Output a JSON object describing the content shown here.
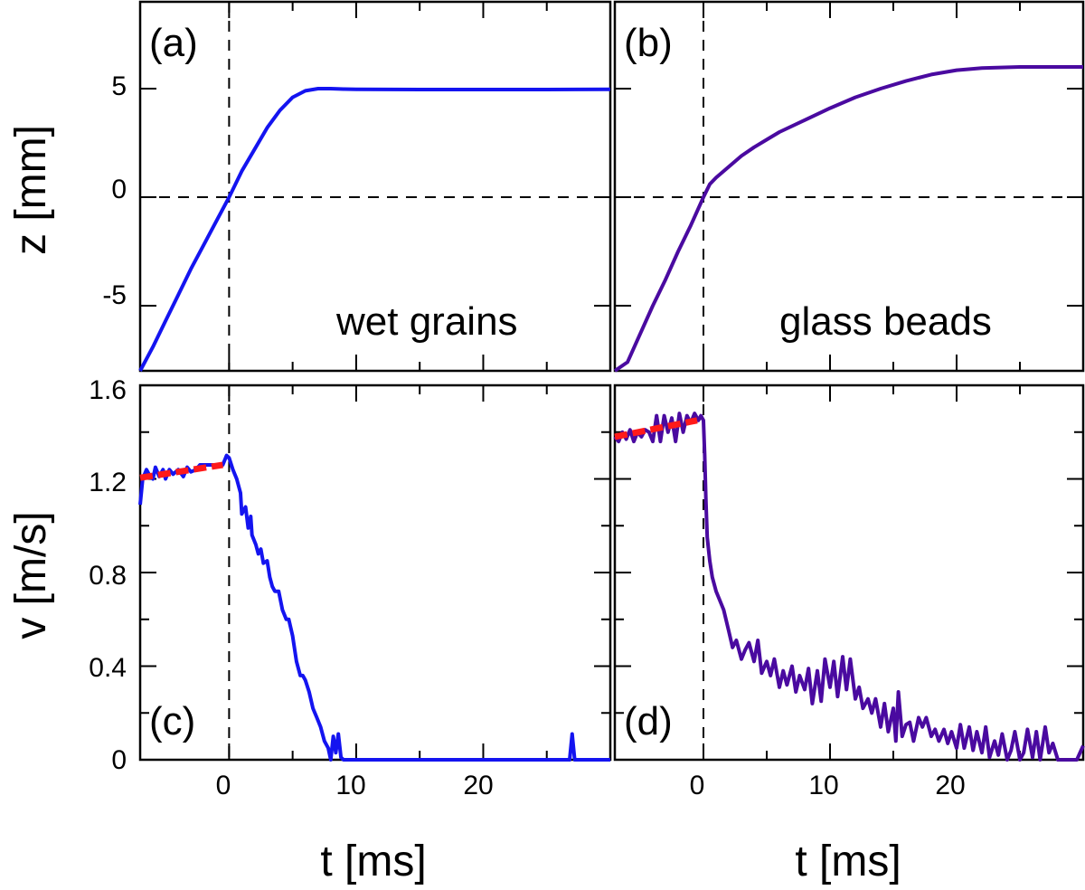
{
  "colors": {
    "wet": "#1414f0",
    "glass": "#4a0aa0",
    "fit": "#ff1a1a",
    "axis": "#000000"
  },
  "axes": {
    "x_title": "t [ms]",
    "z_title": "z [mm]",
    "v_title": "v [m/s]",
    "x_ticks": [
      "0",
      "10",
      "20"
    ],
    "z_ticks": [
      "5",
      "0",
      "-5"
    ],
    "v_ticks": [
      "1.6",
      "1.2",
      "0.8",
      "0.4",
      "0"
    ]
  },
  "panels": {
    "a": {
      "label": "(a)",
      "annotation": "wet grains"
    },
    "b": {
      "label": "(b)",
      "annotation": "glass beads"
    },
    "c": {
      "label": "(c)"
    },
    "d": {
      "label": "(d)"
    }
  },
  "chart_data": [
    {
      "type": "line",
      "panel": "a",
      "xlabel": "",
      "ylabel": "z [mm]",
      "xlim": [
        -7,
        30
      ],
      "ylim": [
        -8,
        9
      ],
      "series": [
        {
          "color": "#1414f0",
          "x": [
            -7,
            -6,
            -5,
            -4,
            -3,
            -2,
            -1,
            0,
            1,
            2,
            3,
            4,
            5,
            6,
            7,
            7.6,
            8,
            9,
            10,
            15,
            20,
            25,
            30
          ],
          "y": [
            -8.1,
            -6.9,
            -5.7,
            -4.5,
            -3.3,
            -2.2,
            -1.1,
            0,
            1.2,
            2.2,
            3.2,
            4.0,
            4.6,
            4.9,
            5.0,
            5.0,
            5.0,
            4.98,
            4.97,
            4.96,
            4.96,
            4.96,
            4.97
          ]
        }
      ]
    },
    {
      "type": "line",
      "panel": "b",
      "xlabel": "",
      "ylabel": "",
      "xlim": [
        -7,
        30
      ],
      "ylim": [
        -8,
        9
      ],
      "series": [
        {
          "color": "#4a0aa0",
          "x": [
            -7,
            -6,
            -5,
            -4,
            -3,
            -2,
            -1,
            0,
            0.5,
            1,
            2,
            3,
            4,
            5,
            6,
            8,
            10,
            12,
            14,
            16,
            18,
            20,
            22,
            25,
            28,
            30
          ],
          "y": [
            -9.0,
            -7.6,
            -6.3,
            -5.0,
            -3.8,
            -2.5,
            -1.3,
            0,
            0.6,
            0.9,
            1.4,
            1.9,
            2.3,
            2.65,
            3.0,
            3.55,
            4.1,
            4.6,
            5.0,
            5.35,
            5.65,
            5.85,
            5.95,
            6.0,
            6.0,
            6.0
          ]
        }
      ]
    },
    {
      "type": "line",
      "panel": "c",
      "xlabel": "t [ms]",
      "ylabel": "v [m/s]",
      "xlim": [
        -7,
        30
      ],
      "ylim": [
        0,
        1.6
      ],
      "series": [
        {
          "color": "#1414f0",
          "x": [
            -7,
            -6.8,
            -6.5,
            -6.2,
            -6,
            -5.8,
            -5.5,
            -5.2,
            -5,
            -4.7,
            -4.4,
            -4,
            -3.6,
            -3.3,
            -3,
            -2.6,
            -2.3,
            -2,
            -1.6,
            -1.2,
            -0.8,
            -0.5,
            -0.2,
            0,
            0.3,
            0.6,
            0.9,
            1.0,
            1.3,
            1.5,
            1.7,
            1.8,
            2.1,
            2.3,
            2.5,
            2.7,
            3.0,
            3.2,
            3.4,
            3.6,
            3.9,
            4.2,
            4.5,
            4.7,
            5.0,
            5.3,
            5.6,
            5.8,
            6.0,
            6.3,
            6.6,
            6.9,
            7.2,
            7.5,
            7.8,
            8.0,
            8.2,
            8.4,
            8.6,
            8.8,
            9.0,
            9.2,
            9.5,
            10,
            15,
            20,
            25,
            26.8,
            27.0,
            27.2,
            27.5,
            30
          ],
          "y": [
            1.09,
            1.2,
            1.24,
            1.21,
            1.2,
            1.25,
            1.21,
            1.24,
            1.2,
            1.24,
            1.22,
            1.24,
            1.21,
            1.25,
            1.23,
            1.24,
            1.26,
            1.26,
            1.26,
            1.26,
            1.26,
            1.26,
            1.3,
            1.29,
            1.24,
            1.2,
            1.14,
            1.05,
            1.08,
            0.99,
            1.04,
            0.96,
            0.92,
            0.88,
            0.9,
            0.84,
            0.85,
            0.78,
            0.74,
            0.72,
            0.72,
            0.64,
            0.6,
            0.6,
            0.53,
            0.42,
            0.36,
            0.36,
            0.34,
            0.29,
            0.22,
            0.18,
            0.14,
            0.08,
            0.05,
            0.0,
            0.1,
            0.03,
            0.11,
            0.01,
            0.0,
            0.0,
            0.0,
            0.0,
            0.0,
            0.0,
            0.0,
            0.0,
            0.11,
            0.0,
            0.0,
            0.0
          ]
        },
        {
          "color": "#ff1a1a",
          "dashed": true,
          "x": [
            -7,
            -0.5
          ],
          "y": [
            1.205,
            1.26
          ]
        }
      ]
    },
    {
      "type": "line",
      "panel": "d",
      "xlabel": "t [ms]",
      "ylabel": "",
      "xlim": [
        -7,
        30
      ],
      "ylim": [
        0,
        1.6
      ],
      "series": [
        {
          "color": "#4a0aa0",
          "x": [
            -7,
            -6.7,
            -6.4,
            -6.1,
            -5.8,
            -5.5,
            -5.2,
            -4.9,
            -4.6,
            -4.3,
            -4.0,
            -3.7,
            -3.4,
            -3.1,
            -2.8,
            -2.5,
            -2.2,
            -1.9,
            -1.6,
            -1.3,
            -1.0,
            -0.7,
            -0.4,
            -0.2,
            0,
            0.1,
            0.2,
            0.3,
            0.5,
            0.7,
            1.0,
            1.3,
            1.6,
            2.0,
            2.3,
            2.6,
            3.0,
            3.3,
            3.6,
            4.0,
            4.3,
            4.6,
            5.0,
            5.3,
            5.6,
            6.0,
            6.3,
            6.6,
            7.0,
            7.3,
            7.6,
            8.0,
            8.3,
            8.6,
            9.0,
            9.3,
            9.6,
            10.0,
            10.3,
            10.6,
            11.0,
            11.3,
            11.6,
            12.0,
            12.3,
            12.6,
            13.0,
            13.3,
            13.6,
            14.0,
            14.3,
            14.6,
            15.0,
            15.2,
            15.4,
            15.7,
            16.0,
            16.3,
            16.6,
            17.0,
            17.3,
            17.6,
            18.0,
            18.3,
            18.6,
            19.0,
            19.3,
            19.6,
            20.0,
            20.3,
            20.6,
            21.0,
            21.3,
            21.6,
            22.0,
            22.3,
            22.6,
            23.0,
            23.3,
            23.6,
            24.0,
            24.3,
            24.6,
            25.0,
            25.3,
            25.6,
            26.0,
            26.3,
            26.6,
            27.0,
            27.3,
            27.6,
            28.0,
            29.0,
            29.5,
            30.0
          ],
          "y": [
            1.38,
            1.36,
            1.4,
            1.37,
            1.41,
            1.36,
            1.4,
            1.38,
            1.41,
            1.4,
            1.36,
            1.47,
            1.36,
            1.47,
            1.4,
            1.46,
            1.36,
            1.48,
            1.4,
            1.47,
            1.44,
            1.48,
            1.45,
            1.47,
            1.45,
            1.3,
            1.1,
            0.95,
            0.85,
            0.78,
            0.72,
            0.68,
            0.64,
            0.55,
            0.48,
            0.51,
            0.43,
            0.47,
            0.5,
            0.42,
            0.51,
            0.37,
            0.42,
            0.36,
            0.43,
            0.31,
            0.38,
            0.32,
            0.4,
            0.29,
            0.36,
            0.3,
            0.39,
            0.24,
            0.38,
            0.25,
            0.43,
            0.31,
            0.42,
            0.27,
            0.44,
            0.3,
            0.43,
            0.26,
            0.31,
            0.22,
            0.26,
            0.2,
            0.26,
            0.14,
            0.24,
            0.12,
            0.22,
            0.08,
            0.29,
            0.1,
            0.15,
            0.16,
            0.08,
            0.18,
            0.14,
            0.18,
            0.1,
            0.13,
            0.08,
            0.13,
            0.07,
            0.12,
            0.05,
            0.15,
            0.05,
            0.14,
            0.04,
            0.12,
            0.03,
            0.14,
            0.01,
            0.08,
            0.02,
            0.11,
            0.0,
            0.04,
            0.12,
            0.0,
            0.03,
            0.13,
            0.01,
            0.12,
            0.0,
            0.14,
            0.03,
            0.07,
            0.0,
            0.0,
            0.0,
            0.06
          ]
        },
        {
          "color": "#ff1a1a",
          "dashed": true,
          "x": [
            -7,
            -0.5
          ],
          "y": [
            1.38,
            1.45
          ]
        }
      ]
    }
  ]
}
